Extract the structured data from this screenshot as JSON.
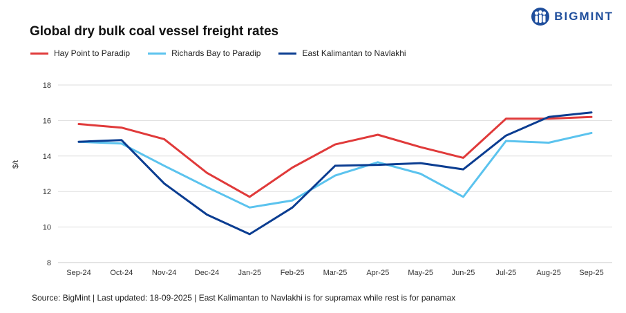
{
  "brand": {
    "name": "BIGMINT",
    "color": "#1f4e9c"
  },
  "chart_data": {
    "type": "line",
    "title": "Global dry bulk coal vessel freight rates",
    "xlabel": "",
    "ylabel": "$/t",
    "ylim": [
      8,
      18
    ],
    "yticks": [
      8,
      10,
      12,
      14,
      16,
      18
    ],
    "grid": true,
    "legend_position": "top-left",
    "categories": [
      "Sep-24",
      "Oct-24",
      "Nov-24",
      "Dec-24",
      "Jan-25",
      "Feb-25",
      "Mar-25",
      "Apr-25",
      "May-25",
      "Jun-25",
      "Jul-25",
      "Aug-25",
      "Sep-25"
    ],
    "series": [
      {
        "name": "Hay Point to Paradip",
        "color": "#e03a3a",
        "values": [
          15.8,
          15.6,
          14.95,
          13.05,
          11.7,
          13.35,
          14.65,
          15.2,
          14.5,
          13.9,
          16.1,
          16.1,
          16.2
        ]
      },
      {
        "name": "Richards Bay to Paradip",
        "color": "#5bc3ee",
        "values": [
          14.8,
          14.7,
          13.45,
          12.25,
          11.1,
          11.5,
          12.9,
          13.65,
          13.0,
          11.7,
          14.85,
          14.75,
          15.3
        ]
      },
      {
        "name": "East Kalimantan to Navlakhi",
        "color": "#0b3d91",
        "values": [
          14.8,
          14.9,
          12.45,
          10.7,
          9.6,
          11.1,
          13.45,
          13.5,
          13.6,
          13.25,
          15.15,
          16.2,
          16.45
        ]
      }
    ]
  },
  "source": "Source: BigMint | Last updated: 18-09-2025 | East Kalimantan to Navlakhi is for supramax while rest is for panamax"
}
